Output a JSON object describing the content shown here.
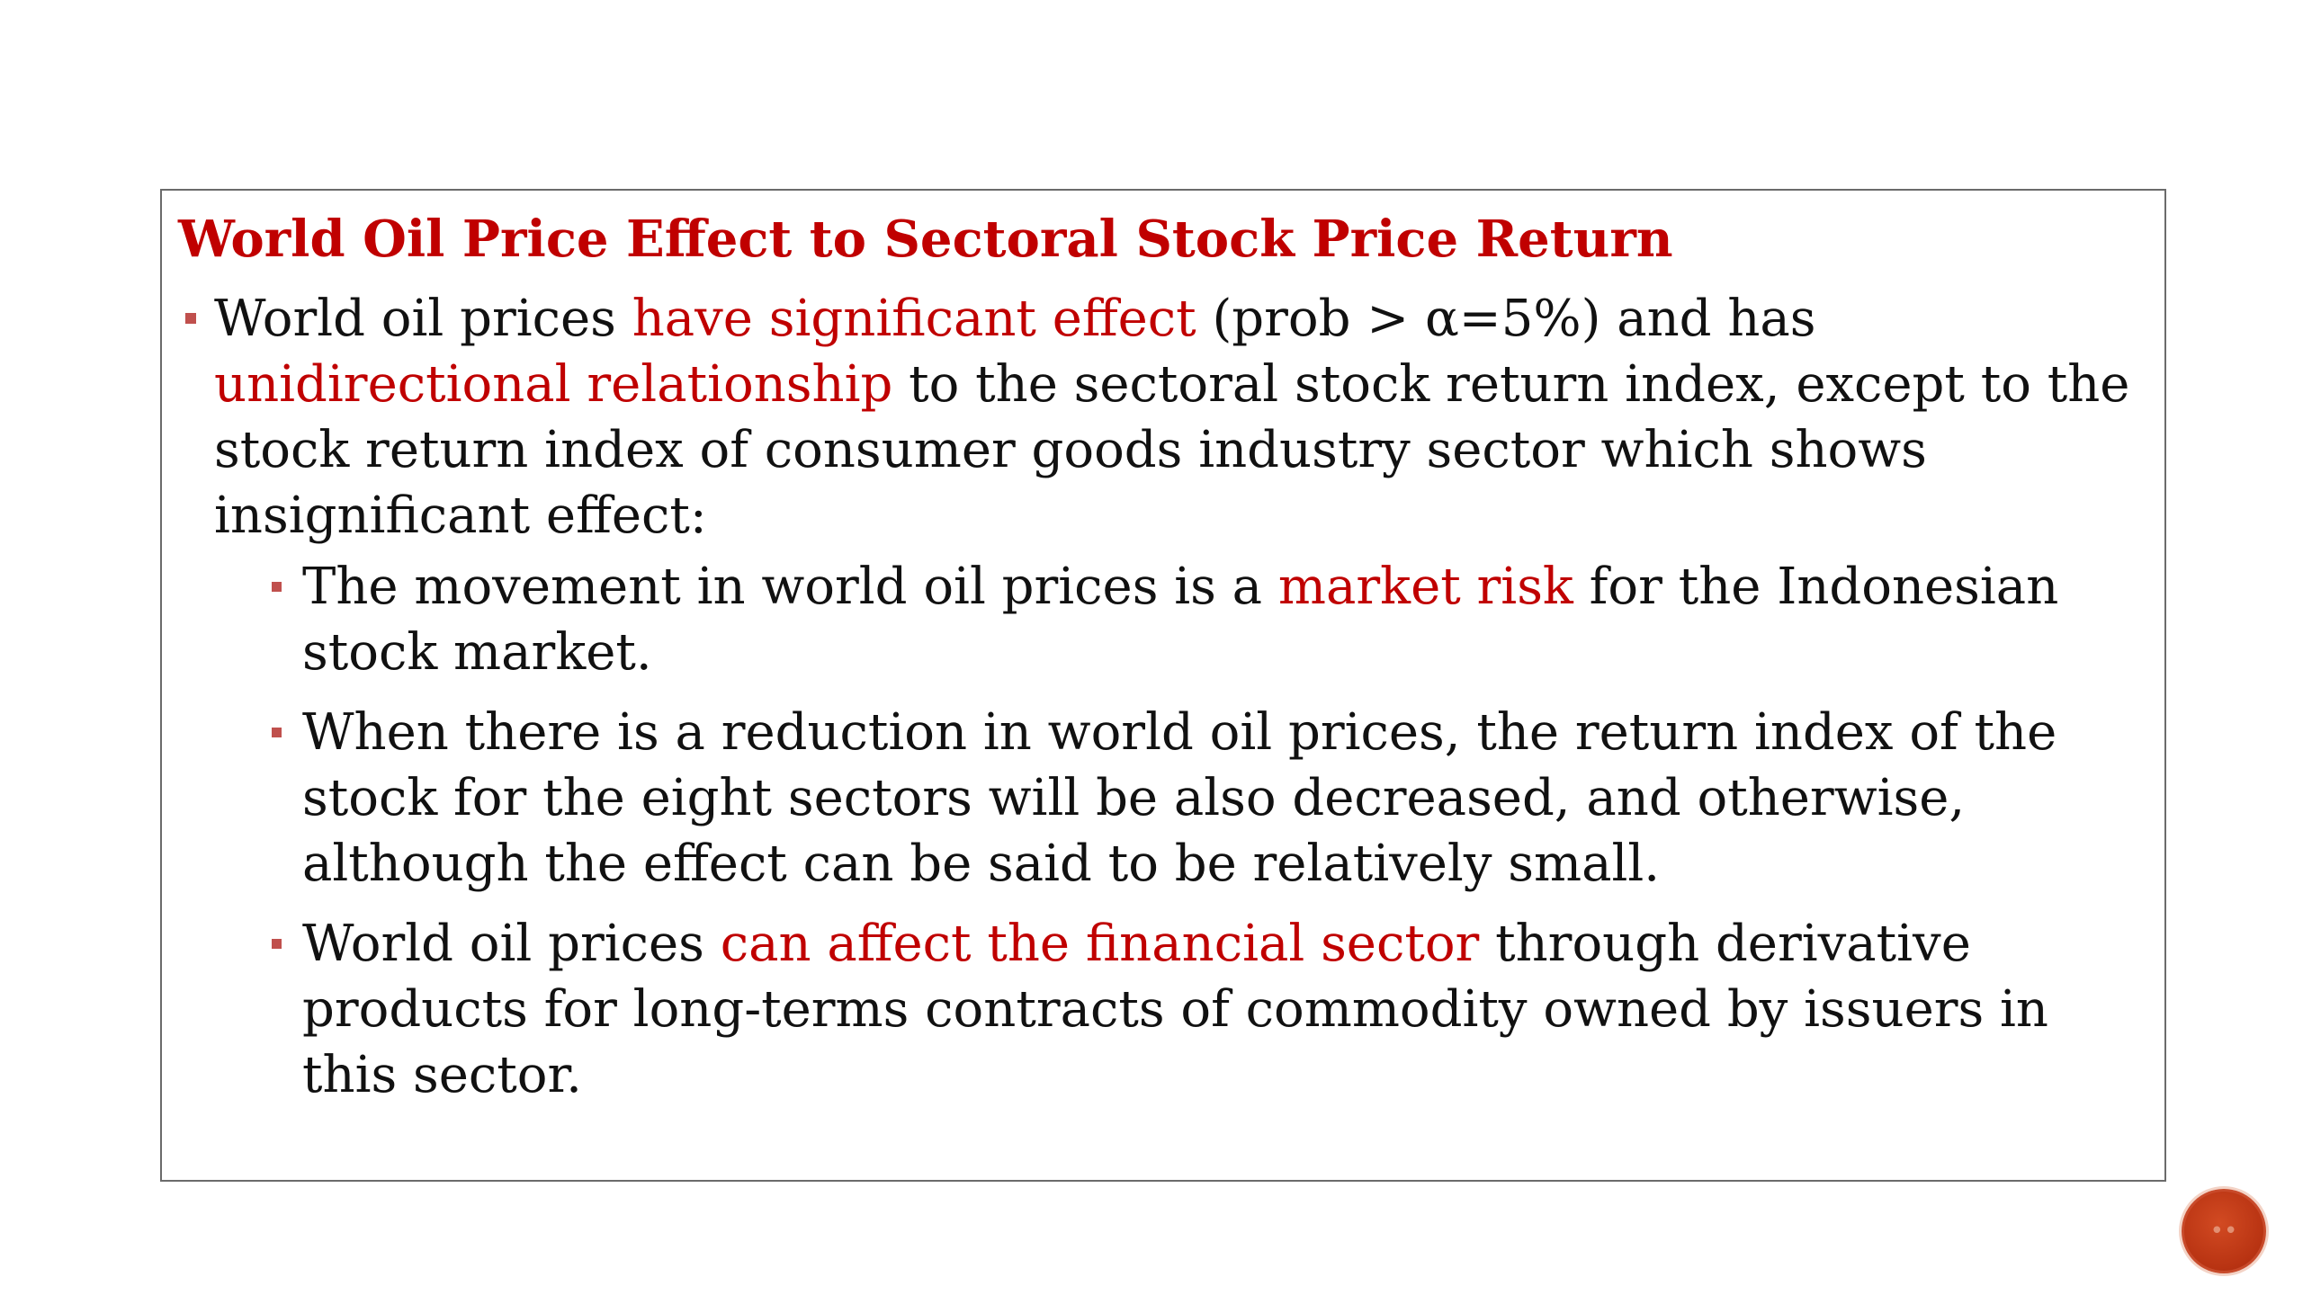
{
  "slide": {
    "title": "World Oil Price Effect to Sectoral Stock Price Return",
    "main_bullet": {
      "t1": "World oil prices ",
      "h1": "have significant effect",
      "t2": " (prob > α=5%) and has ",
      "h2": "unidirectional relationship",
      "t3": " to the sectoral stock return index, except to the stock return index of consumer goods industry sector which shows insignificant effect:"
    },
    "sub_bullets": [
      {
        "t1": "The movement in world oil prices is a ",
        "h1": "market risk",
        "t2": " for the Indonesian stock market."
      },
      {
        "t1": "When there is a reduction in world oil prices, the return index of the stock for the eight sectors will be also decreased, and otherwise, although the effect can be said to be relatively small."
      },
      {
        "t1": "World oil prices ",
        "h1": "can affect the financial sector",
        "t2": " through derivative products for long-terms contracts of commodity owned by issuers in this sector."
      }
    ]
  },
  "theme": {
    "accent": "#c00000",
    "bullet_color": "#c0504d",
    "nav_button_color": "#b83312"
  },
  "icons": {
    "nav_button": "slide-nav-circle-icon"
  }
}
